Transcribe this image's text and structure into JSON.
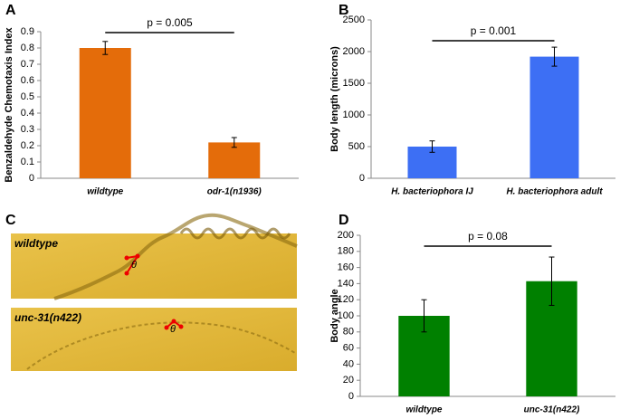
{
  "panels": [
    "A",
    "B",
    "C",
    "D"
  ],
  "chart_data": [
    {
      "type": "bar",
      "y_label": "Benzaldehyde Chemotaxis Index",
      "categories": [
        "wildtype",
        "odr-1(n1936)"
      ],
      "values": [
        0.8,
        0.22
      ],
      "errors": [
        0.04,
        0.03
      ],
      "color": "#e46c0a",
      "ylim": [
        0,
        0.9
      ],
      "yticks": [
        0,
        0.1,
        0.2,
        0.3,
        0.4,
        0.5,
        0.6,
        0.7,
        0.8,
        0.9
      ],
      "annotation": "p = 0.005"
    },
    {
      "type": "bar",
      "y_label": "Body length (microns)",
      "categories": [
        "H. bacteriophora IJ",
        "H. bacteriophora adult"
      ],
      "values": [
        500,
        1920
      ],
      "errors": [
        90,
        150
      ],
      "color": "#3d6ff4",
      "ylim": [
        0,
        2500
      ],
      "yticks": [
        0,
        500,
        1000,
        1500,
        2000,
        2500
      ],
      "annotation": "p = 0.001"
    },
    {
      "type": "bar",
      "y_label": "Body angle",
      "categories": [
        "wildtype",
        "unc-31(n422)"
      ],
      "values": [
        100,
        143
      ],
      "errors": [
        20,
        30
      ],
      "color": "#008000",
      "ylim": [
        0,
        200
      ],
      "yticks": [
        0,
        20,
        40,
        60,
        80,
        100,
        120,
        140,
        160,
        180,
        200
      ],
      "annotation": "p = 0.08"
    }
  ],
  "panel_c": {
    "images": [
      {
        "label": "wildtype",
        "angle": "θ"
      },
      {
        "label": "unc-31(n422)",
        "angle": "θ"
      }
    ]
  }
}
